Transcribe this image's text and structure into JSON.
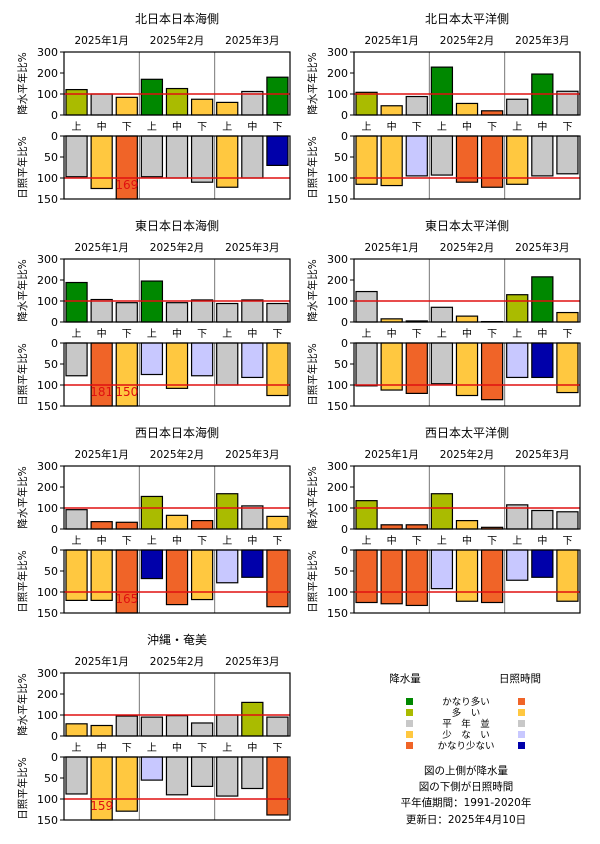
{
  "months": [
    "2025年1月",
    "2025年2月",
    "2025年3月"
  ],
  "periods": [
    "上",
    "中",
    "下"
  ],
  "precip_axis_label": "降水平年比%",
  "sun_axis_label": "日照平年比%",
  "legend": {
    "precip_title": "降水量",
    "sun_title": "日照時間",
    "classes": [
      "かなり多い",
      "多　い",
      "平　年　並",
      "少　な　い",
      "かなり少ない"
    ],
    "precip_colors": [
      "#008800",
      "#aabb00",
      "#c8c8c8",
      "#ffc840",
      "#f06428"
    ],
    "sun_colors": [
      "#f06428",
      "#ffc840",
      "#c8c8c8",
      "#c8c8ff",
      "#0000aa"
    ]
  },
  "notes": {
    "line1": "図の上側が降水量",
    "line2": "図の下側が日照時間",
    "line3": "平年値期間：1991-2020年",
    "line4": "更新日：2025年4月10日"
  },
  "chart_data": [
    {
      "type": "bar",
      "title": "北日本日本海側",
      "categories": [
        "1月上",
        "1月中",
        "1月下",
        "2月上",
        "2月中",
        "2月下",
        "3月上",
        "3月中",
        "3月下"
      ],
      "precip": {
        "values": [
          121,
          100,
          84,
          170,
          126,
          75,
          60,
          112,
          180
        ],
        "classes": [
          1,
          2,
          3,
          0,
          1,
          3,
          3,
          2,
          0
        ],
        "ylim": [
          0,
          300
        ]
      },
      "sunshine": {
        "values": [
          97,
          125,
          169,
          97,
          100,
          110,
          122,
          100,
          70
        ],
        "classes": [
          2,
          1,
          0,
          2,
          2,
          2,
          1,
          2,
          4
        ],
        "ylim": [
          0,
          150
        ],
        "labels": [
          "",
          "",
          "169",
          "",
          "",
          "",
          "",
          "",
          ""
        ]
      }
    },
    {
      "type": "bar",
      "title": "北日本太平洋側",
      "categories": [
        "1月上",
        "1月中",
        "1月下",
        "2月上",
        "2月中",
        "2月下",
        "3月上",
        "3月中",
        "3月下"
      ],
      "precip": {
        "values": [
          108,
          44,
          88,
          228,
          55,
          20,
          75,
          195,
          113
        ],
        "classes": [
          1,
          3,
          2,
          0,
          3,
          4,
          2,
          0,
          2
        ],
        "ylim": [
          0,
          300
        ]
      },
      "sunshine": {
        "values": [
          115,
          118,
          95,
          93,
          110,
          122,
          115,
          95,
          90
        ],
        "classes": [
          1,
          1,
          3,
          2,
          0,
          0,
          1,
          2,
          2
        ],
        "ylim": [
          0,
          150
        ],
        "labels": [
          "",
          "",
          "",
          "",
          "",
          "",
          "",
          "",
          ""
        ]
      }
    },
    {
      "type": "bar",
      "title": "東日本日本海側",
      "categories": [
        "1月上",
        "1月中",
        "1月下",
        "2月上",
        "2月中",
        "2月下",
        "3月上",
        "3月中",
        "3月下"
      ],
      "precip": {
        "values": [
          188,
          107,
          92,
          195,
          92,
          105,
          88,
          105,
          88
        ],
        "classes": [
          0,
          2,
          2,
          0,
          2,
          2,
          2,
          2,
          2
        ],
        "ylim": [
          0,
          300
        ]
      },
      "sunshine": {
        "values": [
          78,
          181,
          150,
          75,
          108,
          78,
          100,
          82,
          125
        ],
        "classes": [
          2,
          0,
          1,
          3,
          1,
          3,
          2,
          3,
          1
        ],
        "ylim": [
          0,
          150
        ],
        "labels": [
          "",
          "181",
          "150",
          "",
          "",
          "",
          "",
          "",
          ""
        ]
      }
    },
    {
      "type": "bar",
      "title": "東日本太平洋側",
      "categories": [
        "1月上",
        "1月中",
        "1月下",
        "2月上",
        "2月中",
        "2月下",
        "3月上",
        "3月中",
        "3月下"
      ],
      "precip": {
        "values": [
          145,
          15,
          5,
          70,
          28,
          2,
          130,
          215,
          45
        ],
        "classes": [
          2,
          3,
          4,
          2,
          3,
          4,
          1,
          0,
          3
        ],
        "ylim": [
          0,
          300
        ]
      },
      "sunshine": {
        "values": [
          102,
          112,
          120,
          97,
          125,
          135,
          82,
          82,
          118
        ],
        "classes": [
          2,
          1,
          0,
          2,
          1,
          0,
          3,
          4,
          1
        ],
        "ylim": [
          0,
          150
        ],
        "labels": [
          "",
          "",
          "",
          "",
          "",
          "",
          "",
          "",
          ""
        ]
      }
    },
    {
      "type": "bar",
      "title": "西日本日本海側",
      "categories": [
        "1月上",
        "1月中",
        "1月下",
        "2月上",
        "2月中",
        "2月下",
        "3月上",
        "3月中",
        "3月下"
      ],
      "precip": {
        "values": [
          92,
          35,
          32,
          155,
          65,
          40,
          168,
          110,
          60
        ],
        "classes": [
          2,
          4,
          4,
          1,
          3,
          4,
          1,
          2,
          3
        ],
        "ylim": [
          0,
          300
        ]
      },
      "sunshine": {
        "values": [
          120,
          120,
          165,
          68,
          130,
          118,
          78,
          65,
          135
        ],
        "classes": [
          1,
          1,
          0,
          4,
          0,
          1,
          3,
          4,
          0
        ],
        "ylim": [
          0,
          150
        ],
        "labels": [
          "",
          "",
          "165",
          "",
          "",
          "",
          "",
          "",
          ""
        ]
      }
    },
    {
      "type": "bar",
      "title": "西日本太平洋側",
      "categories": [
        "1月上",
        "1月中",
        "1月下",
        "2月上",
        "2月中",
        "2月下",
        "3月上",
        "3月中",
        "3月下"
      ],
      "precip": {
        "values": [
          135,
          20,
          20,
          168,
          40,
          8,
          115,
          88,
          82
        ],
        "classes": [
          1,
          4,
          4,
          1,
          3,
          4,
          2,
          2,
          2
        ],
        "ylim": [
          0,
          300
        ]
      },
      "sunshine": {
        "values": [
          125,
          128,
          132,
          92,
          122,
          125,
          72,
          65,
          122
        ],
        "classes": [
          0,
          0,
          0,
          3,
          1,
          0,
          3,
          4,
          1
        ],
        "ylim": [
          0,
          150
        ],
        "labels": [
          "",
          "",
          "",
          "",
          "",
          "",
          "",
          "",
          ""
        ]
      }
    },
    {
      "type": "bar",
      "title": "沖縄・奄美",
      "categories": [
        "1月上",
        "1月中",
        "1月下",
        "2月上",
        "2月中",
        "2月下",
        "3月上",
        "3月中",
        "3月下"
      ],
      "precip": {
        "values": [
          58,
          50,
          95,
          90,
          97,
          62,
          100,
          160,
          90
        ],
        "classes": [
          3,
          3,
          2,
          2,
          2,
          2,
          2,
          1,
          2
        ],
        "ylim": [
          0,
          300
        ]
      },
      "sunshine": {
        "values": [
          88,
          159,
          129,
          55,
          90,
          70,
          93,
          75,
          138
        ],
        "classes": [
          2,
          1,
          1,
          3,
          2,
          2,
          2,
          2,
          0
        ],
        "ylim": [
          0,
          150
        ],
        "labels": [
          "",
          "159",
          "",
          "",
          "",
          "",
          "",
          "",
          ""
        ]
      }
    }
  ]
}
